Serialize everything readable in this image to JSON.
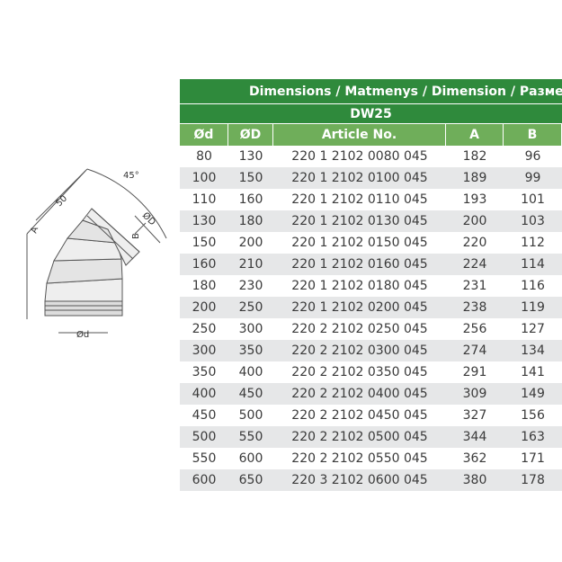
{
  "header": {
    "title": "Dimensions / Matmenys / Dimension / Размеры",
    "subtitle": "DW25"
  },
  "drawing": {
    "angle": "45°",
    "length": "50",
    "a": "A",
    "outer": "ØD",
    "b": "B",
    "inner": "Ød"
  },
  "table": {
    "columns": [
      "Ød",
      "ØD",
      "Article No.",
      "A",
      "B"
    ],
    "rows": [
      [
        "80",
        "130",
        "220 1 2102 0080 045",
        "182",
        "96"
      ],
      [
        "100",
        "150",
        "220 1 2102 0100 045",
        "189",
        "99"
      ],
      [
        "110",
        "160",
        "220 1 2102 0110 045",
        "193",
        "101"
      ],
      [
        "130",
        "180",
        "220 1 2102 0130 045",
        "200",
        "103"
      ],
      [
        "150",
        "200",
        "220 1 2102 0150 045",
        "220",
        "112"
      ],
      [
        "160",
        "210",
        "220 1 2102 0160 045",
        "224",
        "114"
      ],
      [
        "180",
        "230",
        "220 1 2102 0180 045",
        "231",
        "116"
      ],
      [
        "200",
        "250",
        "220 1 2102 0200 045",
        "238",
        "119"
      ],
      [
        "250",
        "300",
        "220 2 2102 0250 045",
        "256",
        "127"
      ],
      [
        "300",
        "350",
        "220 2 2102 0300 045",
        "274",
        "134"
      ],
      [
        "350",
        "400",
        "220 2 2102 0350 045",
        "291",
        "141"
      ],
      [
        "400",
        "450",
        "220 2 2102 0400 045",
        "309",
        "149"
      ],
      [
        "450",
        "500",
        "220 2 2102 0450 045",
        "327",
        "156"
      ],
      [
        "500",
        "550",
        "220 2 2102 0500 045",
        "344",
        "163"
      ],
      [
        "550",
        "600",
        "220 2 2102 0550 045",
        "362",
        "171"
      ],
      [
        "600",
        "650",
        "220 3 2102 0600 045",
        "380",
        "178"
      ]
    ]
  }
}
